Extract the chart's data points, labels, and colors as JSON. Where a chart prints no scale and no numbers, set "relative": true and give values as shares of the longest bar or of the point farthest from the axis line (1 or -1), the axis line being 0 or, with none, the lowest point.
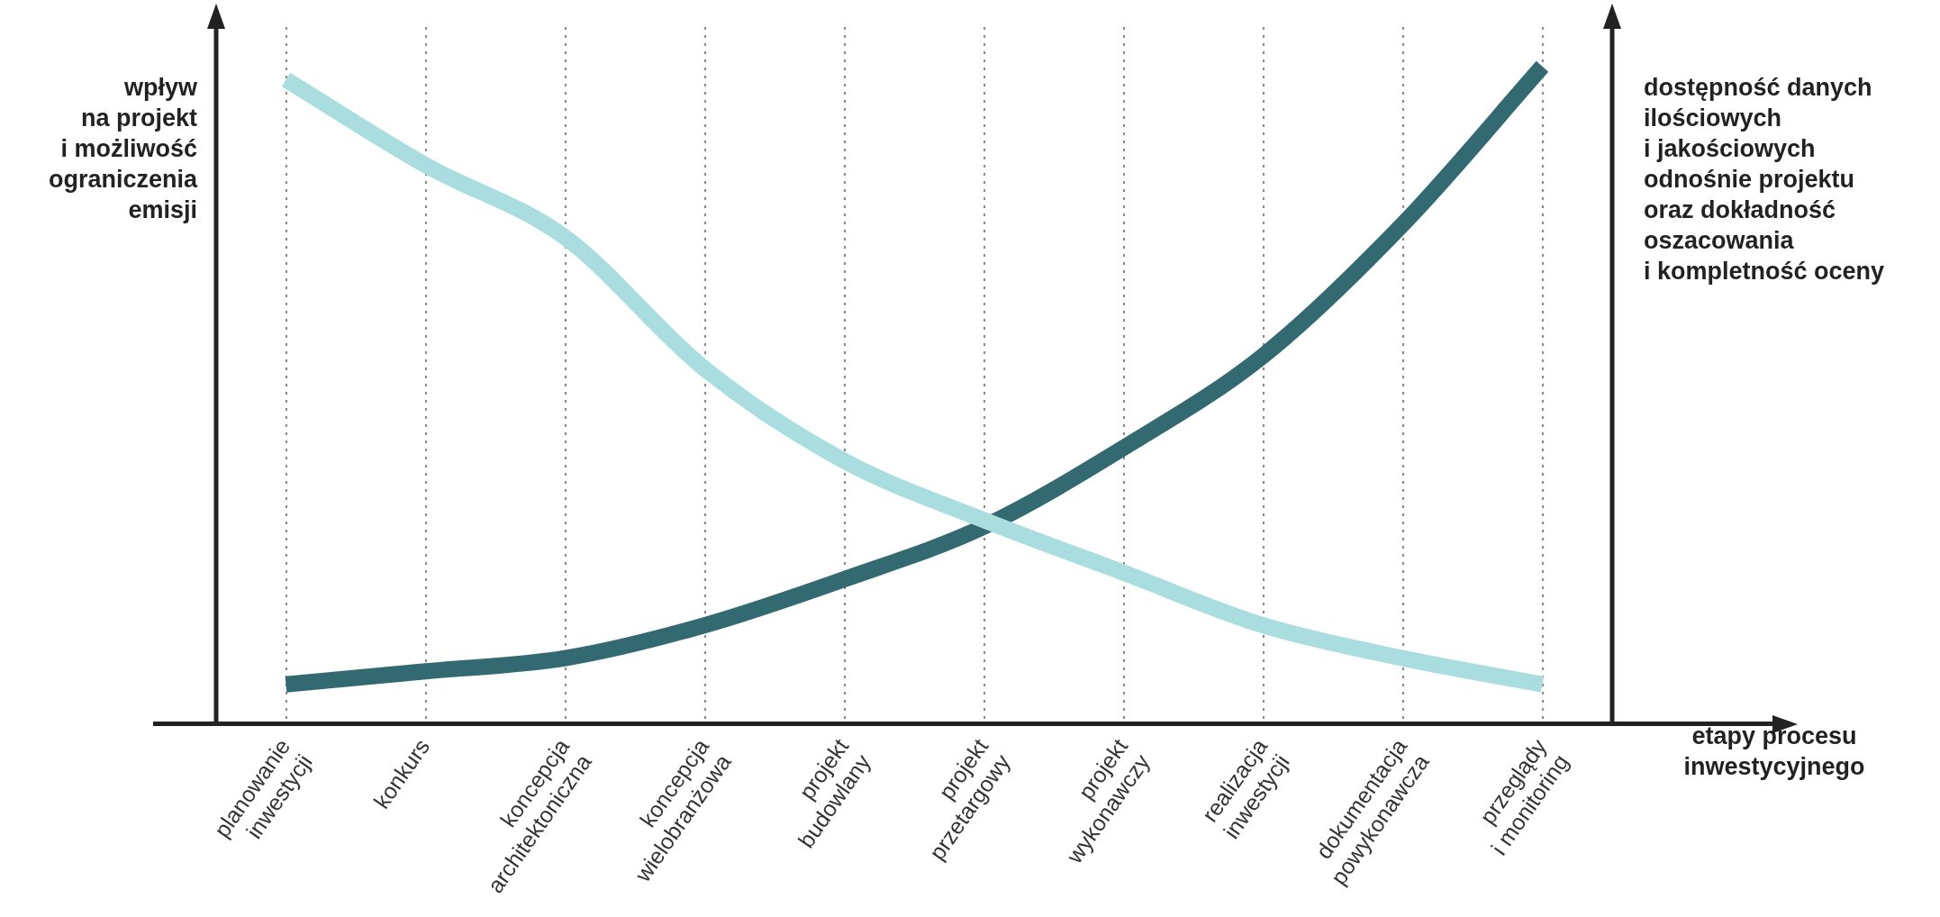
{
  "chart_data": {
    "type": "line",
    "relative": true,
    "ylabel": "wpływ\nna projekt\ni możliwość\nograniczenia\nemisji",
    "y2label": "dostępność danych\nilościowych\ni jakościowych\nodnośnie projektu\noraz dokładność\noszacowania\ni kompletność oceny",
    "xlabel": "etapy procesu\ninwestycyjnego",
    "categories": [
      "planowanie\ninwestycji",
      "konkurs",
      "koncepcja\narchitektoniczna",
      "koncepcja\nwielobranżowa",
      "projekt\nbudowlany",
      "projekt\nprzetargowy",
      "projekt\nwykonawczy",
      "realizacja\ninwestycji",
      "dokumentacja\npowykonawcza",
      "przeglądy\ni monitoring"
    ],
    "series": [
      {
        "color": "#a9dde0",
        "values": [
          0.98,
          0.85,
          0.74,
          0.54,
          0.4,
          0.31,
          0.23,
          0.15,
          0.1,
          0.06
        ]
      },
      {
        "color": "#336a72",
        "values": [
          0.06,
          0.08,
          0.1,
          0.15,
          0.22,
          0.3,
          0.42,
          0.56,
          0.76,
          1
        ]
      }
    ],
    "grid": "x",
    "marker": "none",
    "line_style": "solid"
  }
}
